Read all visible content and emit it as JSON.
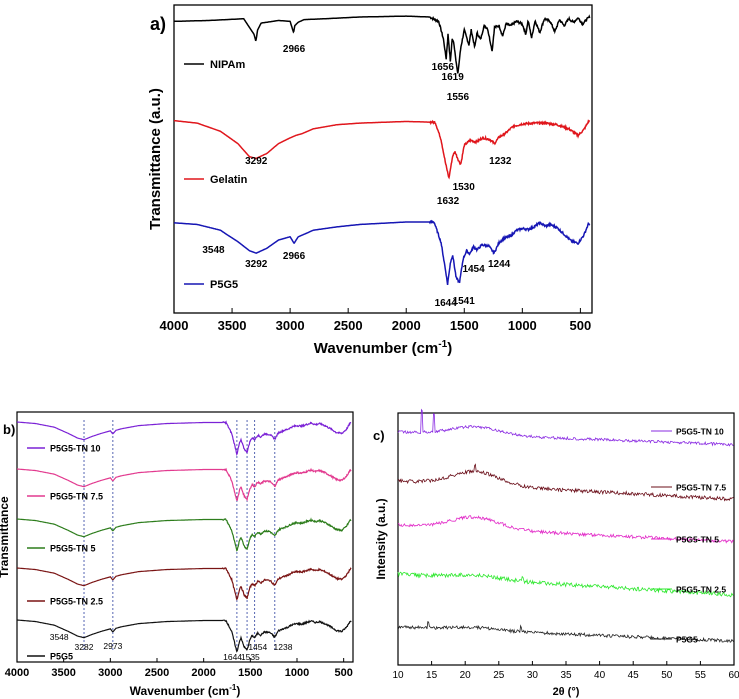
{
  "chart_data": [
    {
      "panel": "a)",
      "type": "line",
      "xlabel": "Wavenumber (cm",
      "xlabel_sup": "-1",
      "xlabel_close": ")",
      "ylabel": "Transmittance (a.u.)",
      "xlim": [
        4000,
        400
      ],
      "x_ticks": [
        "4000",
        "3500",
        "3000",
        "2500",
        "2000",
        "1500",
        "1000",
        "500"
      ],
      "x_tick_values": [
        4000,
        3500,
        3000,
        2500,
        2000,
        1500,
        1000,
        500
      ],
      "legend_position": "left",
      "series": [
        {
          "name": "NIPAm",
          "color": "#000000",
          "profile": [
            [
              4000,
              -0.5
            ],
            [
              3700,
              -0.4
            ],
            [
              3400,
              -0.2
            ],
            [
              3310,
              -2.0
            ],
            [
              3295,
              -2.8
            ],
            [
              3280,
              -1.5
            ],
            [
              3250,
              -0.7
            ],
            [
              3100,
              -0.4
            ],
            [
              3000,
              -0.5
            ],
            [
              2970,
              -1.8
            ],
            [
              2960,
              -1.0
            ],
            [
              2930,
              -0.6
            ],
            [
              2880,
              -0.3
            ],
            [
              2700,
              -0.2
            ],
            [
              2400,
              0.0
            ],
            [
              2000,
              0.1
            ],
            [
              1800,
              0.0
            ],
            [
              1720,
              -0.5
            ],
            [
              1680,
              -2.5
            ],
            [
              1656,
              -4.8
            ],
            [
              1640,
              -2.0
            ],
            [
              1619,
              -5.2
            ],
            [
              1605,
              -2.5
            ],
            [
              1590,
              -3.0
            ],
            [
              1556,
              -6.6
            ],
            [
              1530,
              -3.5
            ],
            [
              1500,
              -1.5
            ],
            [
              1460,
              -3.2
            ],
            [
              1440,
              -1.5
            ],
            [
              1410,
              -3.5
            ],
            [
              1390,
              -1.8
            ],
            [
              1360,
              -2.6
            ],
            [
              1330,
              -1.0
            ],
            [
              1300,
              -1.3
            ],
            [
              1260,
              -3.9
            ],
            [
              1240,
              -1.2
            ],
            [
              1200,
              -1.0
            ],
            [
              1170,
              -2.2
            ],
            [
              1140,
              -0.8
            ],
            [
              1100,
              -1.0
            ],
            [
              1050,
              -0.5
            ],
            [
              1000,
              -0.8
            ],
            [
              970,
              -2.0
            ],
            [
              950,
              -0.4
            ],
            [
              920,
              -2.4
            ],
            [
              890,
              -0.4
            ],
            [
              850,
              -1.8
            ],
            [
              810,
              -0.2
            ],
            [
              760,
              -0.5
            ],
            [
              720,
              -1.7
            ],
            [
              680,
              -0.3
            ],
            [
              640,
              -1.0
            ],
            [
              600,
              -0.2
            ],
            [
              560,
              -0.6
            ],
            [
              520,
              -0.1
            ],
            [
              480,
              -0.8
            ],
            [
              440,
              -0.2
            ],
            [
              420,
              0.0
            ]
          ],
          "peak_labels": [
            {
              "x": 2966,
              "label": "2966",
              "dy": 0
            },
            {
              "x": 1656,
              "label": "1656",
              "dy": 0
            },
            {
              "x": 1619,
              "label": "1619",
              "dy": 0
            },
            {
              "x": 1556,
              "label": "1556",
              "dy": 0
            }
          ]
        },
        {
          "name": "Gelatin",
          "color": "#e0161c",
          "profile": [
            [
              4000,
              -0.2
            ],
            [
              3800,
              -0.5
            ],
            [
              3600,
              -1.5
            ],
            [
              3450,
              -3.0
            ],
            [
              3350,
              -4.6
            ],
            [
              3292,
              -4.8
            ],
            [
              3200,
              -4.2
            ],
            [
              3100,
              -3.0
            ],
            [
              3000,
              -2.3
            ],
            [
              2950,
              -2.0
            ],
            [
              2900,
              -1.8
            ],
            [
              2800,
              -1.2
            ],
            [
              2600,
              -0.7
            ],
            [
              2400,
              -0.5
            ],
            [
              2000,
              -0.3
            ],
            [
              1750,
              -0.4
            ],
            [
              1700,
              -2.5
            ],
            [
              1660,
              -5.5
            ],
            [
              1632,
              -7.2
            ],
            [
              1600,
              -4.5
            ],
            [
              1580,
              -4.0
            ],
            [
              1545,
              -5.2
            ],
            [
              1530,
              -5.5
            ],
            [
              1500,
              -3.2
            ],
            [
              1450,
              -2.6
            ],
            [
              1400,
              -2.8
            ],
            [
              1340,
              -2.3
            ],
            [
              1280,
              -2.5
            ],
            [
              1240,
              -3.0
            ],
            [
              1200,
              -2.2
            ],
            [
              1150,
              -1.8
            ],
            [
              1080,
              -0.9
            ],
            [
              1000,
              -0.6
            ],
            [
              900,
              -0.5
            ],
            [
              800,
              -0.5
            ],
            [
              700,
              -0.7
            ],
            [
              600,
              -1.2
            ],
            [
              520,
              -2.0
            ],
            [
              470,
              -1.3
            ],
            [
              430,
              -0.3
            ]
          ],
          "peak_labels": [
            {
              "x": 3292,
              "label": "3292",
              "dy": 0
            },
            {
              "x": 1632,
              "label": "1632",
              "dy": 0
            },
            {
              "x": 1530,
              "label": "1530",
              "dy": 0
            },
            {
              "x": 1232,
              "label": "1232",
              "dy": 0
            }
          ]
        },
        {
          "name": "P5G5",
          "color": "#1616b4",
          "profile": [
            [
              4000,
              -0.1
            ],
            [
              3800,
              -0.3
            ],
            [
              3600,
              -1.0
            ],
            [
              3548,
              -1.5
            ],
            [
              3450,
              -2.4
            ],
            [
              3350,
              -3.5
            ],
            [
              3292,
              -3.8
            ],
            [
              3200,
              -3.2
            ],
            [
              3100,
              -2.2
            ],
            [
              3000,
              -1.8
            ],
            [
              2966,
              -2.6
            ],
            [
              2930,
              -1.8
            ],
            [
              2880,
              -1.5
            ],
            [
              2800,
              -1.0
            ],
            [
              2600,
              -0.6
            ],
            [
              2400,
              -0.3
            ],
            [
              2000,
              0.0
            ],
            [
              1760,
              0.0
            ],
            [
              1700,
              -2.5
            ],
            [
              1660,
              -6.0
            ],
            [
              1644,
              -7.6
            ],
            [
              1620,
              -5.0
            ],
            [
              1600,
              -4.0
            ],
            [
              1570,
              -6.8
            ],
            [
              1541,
              -7.4
            ],
            [
              1510,
              -4.5
            ],
            [
              1480,
              -3.5
            ],
            [
              1454,
              -3.9
            ],
            [
              1420,
              -3.0
            ],
            [
              1390,
              -3.4
            ],
            [
              1350,
              -2.8
            ],
            [
              1290,
              -2.9
            ],
            [
              1244,
              -3.8
            ],
            [
              1200,
              -2.5
            ],
            [
              1160,
              -2.0
            ],
            [
              1100,
              -1.7
            ],
            [
              1050,
              -1.0
            ],
            [
              1000,
              -0.8
            ],
            [
              950,
              -0.9
            ],
            [
              900,
              -0.6
            ],
            [
              850,
              -0.1
            ],
            [
              800,
              -0.5
            ],
            [
              760,
              -0.3
            ],
            [
              700,
              -0.7
            ],
            [
              640,
              -1.5
            ],
            [
              580,
              -2.3
            ],
            [
              520,
              -2.6
            ],
            [
              470,
              -1.6
            ],
            [
              430,
              -0.2
            ]
          ],
          "peak_labels": [
            {
              "x": 3548,
              "label": "3548",
              "dy": 0
            },
            {
              "x": 3292,
              "label": "3292",
              "dy": 0
            },
            {
              "x": 2966,
              "label": "2966",
              "dy": 0
            },
            {
              "x": 1644,
              "label": "1644",
              "dy": 0
            },
            {
              "x": 1541,
              "label": "1541",
              "dy": 0
            },
            {
              "x": 1454,
              "label": "1454",
              "dy": 0
            },
            {
              "x": 1244,
              "label": "1244",
              "dy": 0
            }
          ]
        }
      ]
    },
    {
      "panel": "b)",
      "type": "line",
      "xlabel": "Wavenumber (cm",
      "xlabel_sup": "-1",
      "xlabel_close": ")",
      "ylabel": "Transmittance",
      "xlim": [
        4000,
        400
      ],
      "x_ticks": [
        "4000",
        "3500",
        "3000",
        "2500",
        "2000",
        "1500",
        "1000",
        "500"
      ],
      "x_tick_values": [
        4000,
        3500,
        3000,
        2500,
        2000,
        1500,
        1000,
        500
      ],
      "reference_lines": [
        3282,
        2973,
        1644,
        1535,
        1454,
        1238
      ],
      "legend_position": "left",
      "series": [
        {
          "name": "P5G5-TN 10",
          "color": "#7b22d6"
        },
        {
          "name": "P5G5-TN 7.5",
          "color": "#e23a8f"
        },
        {
          "name": "P5G5-TN 5",
          "color": "#2d7d1c"
        },
        {
          "name": "P5G5-TN 2.5",
          "color": "#7a1414"
        },
        {
          "name": "P5G5",
          "color": "#111111"
        }
      ],
      "base_profile": [
        [
          4000,
          0.0
        ],
        [
          3800,
          -0.3
        ],
        [
          3600,
          -1.0
        ],
        [
          3450,
          -2.2
        ],
        [
          3350,
          -3.1
        ],
        [
          3282,
          -3.4
        ],
        [
          3200,
          -2.8
        ],
        [
          3100,
          -2.2
        ],
        [
          3000,
          -1.7
        ],
        [
          2973,
          -2.3
        ],
        [
          2940,
          -1.6
        ],
        [
          2880,
          -1.3
        ],
        [
          2700,
          -0.7
        ],
        [
          2400,
          -0.3
        ],
        [
          2000,
          -0.1
        ],
        [
          1760,
          -0.1
        ],
        [
          1700,
          -2.2
        ],
        [
          1660,
          -5.0
        ],
        [
          1644,
          -6.2
        ],
        [
          1615,
          -4.0
        ],
        [
          1600,
          -3.5
        ],
        [
          1565,
          -5.2
        ],
        [
          1535,
          -5.8
        ],
        [
          1505,
          -3.8
        ],
        [
          1480,
          -3.0
        ],
        [
          1454,
          -3.4
        ],
        [
          1420,
          -2.5
        ],
        [
          1390,
          -2.9
        ],
        [
          1350,
          -2.3
        ],
        [
          1290,
          -2.4
        ],
        [
          1238,
          -3.3
        ],
        [
          1200,
          -2.1
        ],
        [
          1150,
          -1.7
        ],
        [
          1100,
          -1.4
        ],
        [
          1050,
          -0.9
        ],
        [
          1000,
          -0.7
        ],
        [
          950,
          -0.8
        ],
        [
          900,
          -0.5
        ],
        [
          850,
          -0.2
        ],
        [
          800,
          -0.5
        ],
        [
          760,
          -0.3
        ],
        [
          700,
          -0.7
        ],
        [
          640,
          -1.3
        ],
        [
          580,
          -2.0
        ],
        [
          520,
          -2.2
        ],
        [
          470,
          -1.4
        ],
        [
          430,
          -0.2
        ]
      ],
      "peak_labels": [
        {
          "x": 3548,
          "label": "3548"
        },
        {
          "x": 3282,
          "label": "3282"
        },
        {
          "x": 2973,
          "label": "2973"
        },
        {
          "x": 1644,
          "label": "1644"
        },
        {
          "x": 1535,
          "label": "1535"
        },
        {
          "x": 1454,
          "label": "1454"
        },
        {
          "x": 1238,
          "label": "1238"
        }
      ]
    },
    {
      "panel": "c)",
      "type": "line",
      "xlabel": "2θ (°)",
      "ylabel": "Intensity (a.u.)",
      "xlim": [
        10,
        60
      ],
      "x_ticks": [
        "10",
        "15",
        "20",
        "25",
        "30",
        "35",
        "40",
        "45",
        "50",
        "55",
        "60"
      ],
      "x_tick_values": [
        10,
        15,
        20,
        25,
        30,
        35,
        40,
        45,
        50,
        55,
        60
      ],
      "legend_position": "right",
      "series": [
        {
          "name": "P5G5-TN 10",
          "color": "#8a2be2",
          "hump": 0.9,
          "noise": 0.35,
          "tilt": 0.9,
          "spikes": [
            [
              13.5,
              2.8
            ],
            [
              15.3,
              2.2
            ]
          ]
        },
        {
          "name": "P5G5-TN 7.5",
          "color": "#6b0f1a",
          "hump": 1.5,
          "noise": 0.45,
          "tilt": 1.3,
          "spikes": [
            [
              21.5,
              0.8
            ]
          ]
        },
        {
          "name": "P5G5-TN 5",
          "color": "#e22bc8",
          "hump": 1.3,
          "noise": 0.4,
          "tilt": 1.2,
          "spikes": []
        },
        {
          "name": "P5G5-TN 2.5",
          "color": "#2ee82e",
          "hump": 0.4,
          "noise": 0.5,
          "tilt": 1.5,
          "spikes": [
            [
              28.5,
              0.7
            ]
          ]
        },
        {
          "name": "P5G5",
          "color": "#222222",
          "hump": 0.3,
          "noise": 0.4,
          "tilt": 1.0,
          "spikes": [
            [
              14.5,
              0.8
            ],
            [
              28.3,
              0.6
            ]
          ]
        }
      ]
    }
  ]
}
